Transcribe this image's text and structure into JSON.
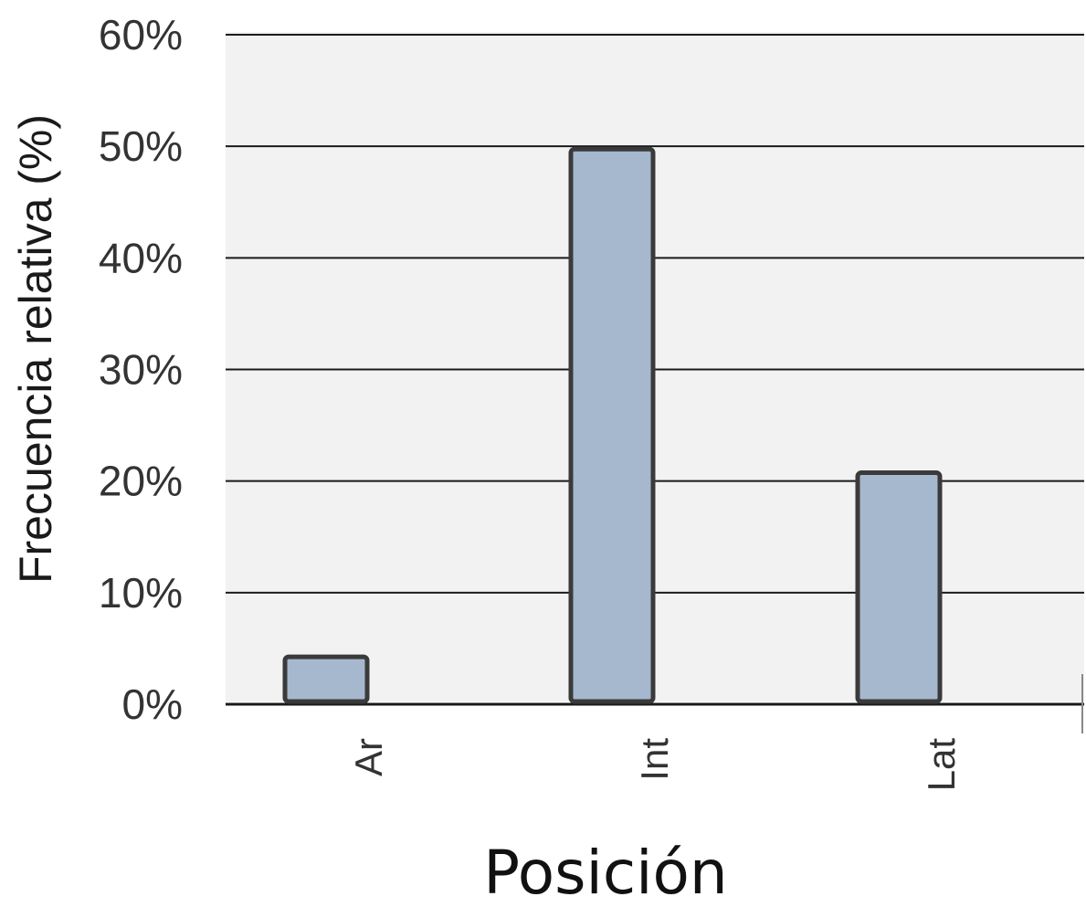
{
  "chart_data": {
    "type": "bar",
    "categories": [
      "Ar",
      "Int",
      "Lat"
    ],
    "values": [
      4,
      49.5,
      20.5
    ],
    "xlabel": "Posición",
    "ylabel": "Frecuencia relativa (%)",
    "ylim": [
      0,
      60
    ],
    "yticks": [
      0,
      10,
      20,
      30,
      40,
      50,
      60
    ],
    "ytick_labels": [
      "0%",
      "10%",
      "20%",
      "30%",
      "40%",
      "50%",
      "60%"
    ],
    "grid": true,
    "legend": "none",
    "colors": {
      "bar_fill": "#a5b8ce",
      "bar_stroke": "#3a3a3a",
      "plot_background": "#f2f2f2",
      "gridline": "#1a1a1a"
    }
  }
}
